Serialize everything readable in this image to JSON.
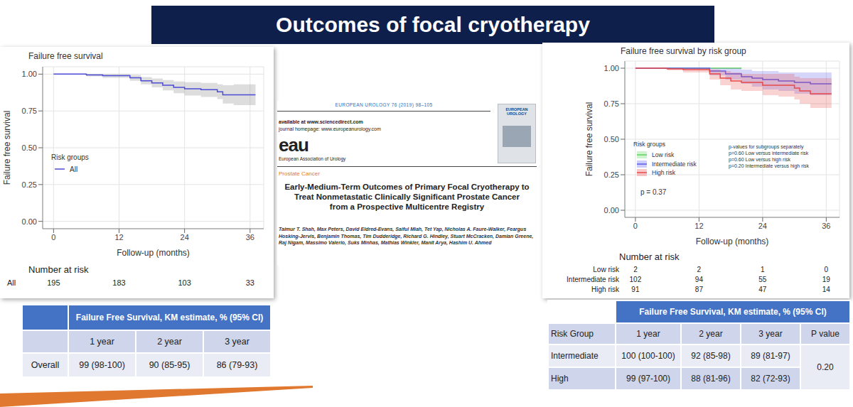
{
  "title": "Outcomes of focal cryotherapy",
  "chart_data": [
    {
      "type": "line",
      "title": "Failure free survival",
      "x_label": "Follow-up (months)",
      "y_label": "Failure free survival",
      "xlim": [
        -2,
        38.5
      ],
      "xticks": [
        0,
        12,
        24,
        36
      ],
      "ylim": [
        -0.05,
        1.05
      ],
      "yticks": [
        {
          "value": 0,
          "label": "0.00"
        },
        {
          "value": 0.25,
          "label": "0.25"
        },
        {
          "value": 0.5,
          "label": "0.50"
        },
        {
          "value": 0.75,
          "label": "0.75"
        },
        {
          "value": 1,
          "label": "1.00"
        }
      ],
      "grid": true,
      "legend": "left",
      "legend_title": "Risk groups",
      "series": [
        {
          "name": "All",
          "color": "#4c4cd6",
          "line_style": "step",
          "x": [
            0,
            3,
            6,
            9,
            12,
            14,
            16,
            18,
            20,
            22,
            24,
            27,
            30,
            31,
            33,
            37
          ],
          "values": [
            1,
            1,
            0.995,
            0.99,
            0.99,
            0.975,
            0.955,
            0.94,
            0.925,
            0.91,
            0.9,
            0.895,
            0.88,
            0.86,
            0.86,
            0.86
          ],
          "ci_lower": [
            1,
            1,
            0.985,
            0.975,
            0.975,
            0.955,
            0.93,
            0.91,
            0.89,
            0.87,
            0.855,
            0.845,
            0.83,
            0.8,
            0.79,
            0.79
          ],
          "ci_upper": [
            1,
            1,
            1,
            1,
            1,
            0.995,
            0.98,
            0.97,
            0.96,
            0.95,
            0.945,
            0.94,
            0.93,
            0.925,
            0.93,
            0.93
          ]
        }
      ],
      "number_at_risk": {
        "title": "Number at risk",
        "rows": [
          {
            "name": "All",
            "values": [
              195,
              183,
              103,
              33
            ]
          }
        ]
      }
    },
    {
      "type": "line",
      "title": "Failure free survival by risk group",
      "x_label": "Follow-up (months)",
      "y_label": "Failure free survival",
      "xlim": [
        -2,
        38.5
      ],
      "xticks": [
        0,
        12,
        24,
        36
      ],
      "ylim": [
        -0.05,
        1.05
      ],
      "yticks": [
        {
          "value": 0,
          "label": "0.00"
        },
        {
          "value": 0.25,
          "label": "0.25"
        },
        {
          "value": 0.5,
          "label": "0.50"
        },
        {
          "value": 0.75,
          "label": "0.75"
        },
        {
          "value": 1,
          "label": "1.00"
        }
      ],
      "grid": true,
      "legend": "left",
      "legend_title": "Risk groups",
      "p_value": "p = 0.37",
      "p_value_notes": [
        "p-values for subgroups separately",
        "p=0.60 Low versus intermediate risk",
        "p=0.60 Low versus high risk",
        "p=0.20 Intermediate versus high risk"
      ],
      "series": [
        {
          "name": "Low risk",
          "color": "#5fd35f",
          "line_style": "step",
          "x": [
            0,
            12,
            20
          ],
          "values": [
            1,
            1,
            1
          ]
        },
        {
          "name": "Intermediate risk",
          "color": "#5b5bea",
          "line_style": "step",
          "x": [
            0,
            12,
            14,
            17,
            20,
            22,
            24,
            27,
            30,
            33,
            37
          ],
          "values": [
            1,
            1,
            0.98,
            0.96,
            0.94,
            0.93,
            0.92,
            0.91,
            0.9,
            0.89,
            0.89
          ],
          "ci_lower": [
            1,
            1,
            0.95,
            0.92,
            0.89,
            0.87,
            0.85,
            0.84,
            0.82,
            0.81,
            0.81
          ],
          "ci_upper": [
            1,
            1,
            1,
            1,
            0.99,
            0.98,
            0.98,
            0.97,
            0.97,
            0.97,
            0.97
          ]
        },
        {
          "name": "High risk",
          "color": "#e84a4a",
          "line_style": "step",
          "x": [
            0,
            6,
            9,
            12,
            14,
            16,
            18,
            20,
            24,
            27,
            30,
            31,
            33,
            37
          ],
          "values": [
            1,
            0.995,
            0.99,
            0.99,
            0.96,
            0.93,
            0.91,
            0.9,
            0.88,
            0.88,
            0.86,
            0.84,
            0.82,
            0.82
          ],
          "ci_lower": [
            1,
            0.985,
            0.97,
            0.97,
            0.92,
            0.88,
            0.85,
            0.84,
            0.81,
            0.8,
            0.78,
            0.75,
            0.72,
            0.72
          ],
          "ci_upper": [
            1,
            1,
            1,
            1,
            0.99,
            0.98,
            0.97,
            0.96,
            0.96,
            0.96,
            0.94,
            0.93,
            0.93,
            0.93
          ]
        }
      ],
      "number_at_risk": {
        "title": "Number at risk",
        "rows": [
          {
            "name": "Low risk",
            "values": [
              2,
              2,
              1,
              0
            ]
          },
          {
            "name": "Intermediate risk",
            "values": [
              102,
              94,
              55,
              19
            ]
          },
          {
            "name": "High risk",
            "values": [
              91,
              87,
              47,
              14
            ]
          }
        ]
      }
    }
  ],
  "paper": {
    "journal_header": "EUROPEAN UROLOGY 76 (2019) 98–105",
    "available": "available at www.sciencedirect.com",
    "homepage": "journal homepage: www.europeanurology.com",
    "logo": "eau",
    "society": "European Association of Urology",
    "cover_title": "EUROPEAN UROLOGY",
    "section": "Prostate Cancer",
    "title": "Early-Medium-Term Outcomes of Primary Focal Cryotherapy to Treat Nonmetastatic Clinically Significant Prostate Cancer from a Prospective Multicentre Registry",
    "authors": "Taimur T. Shah, Max Peters, David Eldred-Evans, Saiful Miah, Tet Yap, Nicholas A. Faure-Walker, Feargus Hosking-Jervis, Benjamin Thomas, Tim Dudderidge, Richard G. Hindley, Stuart McCracken, Damian Greene, Raj Nigam, Massimo Valerio, Suks Minhas, Mathias Winkler, Manit Arya, Hashim U. Ahmed"
  },
  "tables": [
    {
      "header": "Failure Free Survival, KM estimate, % (95% CI)",
      "columns": [
        "1 year",
        "2 year",
        "3 year"
      ],
      "rows": [
        {
          "label": "Overall",
          "cells": [
            "99 (98-100)",
            "90 (85-95)",
            "86 (79-93)"
          ]
        }
      ]
    },
    {
      "header": "Failure Free Survival, KM estimate, % (95% CI)",
      "row_header": "Risk Group",
      "columns": [
        "1 year",
        "2 year",
        "3 year",
        "P value"
      ],
      "rows": [
        {
          "label": "Intermediate",
          "cells": [
            "100 (100-100)",
            "92 (85-98)",
            "89 (81-97)"
          ]
        },
        {
          "label": "High",
          "cells": [
            "99 (97-100)",
            "88 (81-96)",
            "82 (72-93)"
          ]
        }
      ],
      "p_value": "0.20"
    }
  ]
}
